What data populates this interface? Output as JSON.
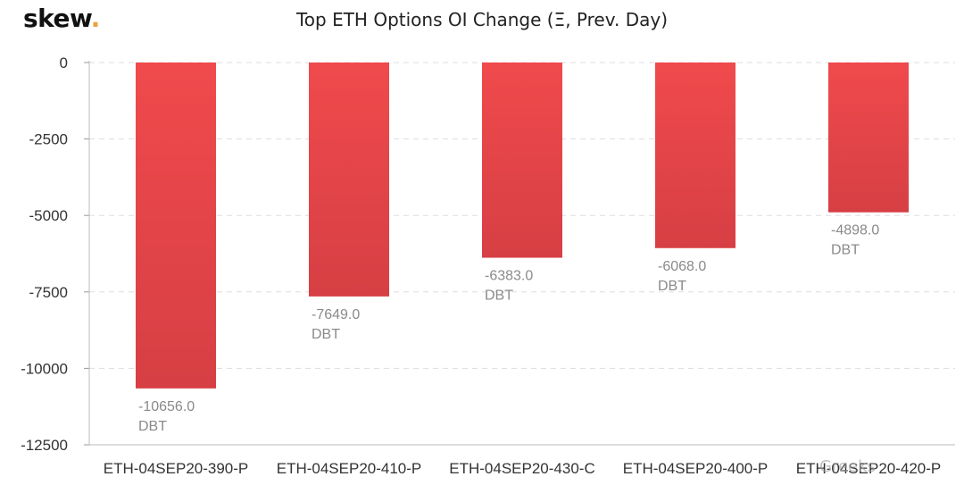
{
  "logo": {
    "text": "skew",
    "dot": ".",
    "dot_color": "#e8a33a"
  },
  "watermark": {
    "text": "Greeks"
  },
  "colors": {
    "bar_top": "#f04a4c",
    "bar_bottom": "#d63f44",
    "label": "#8a8a8a",
    "axis_text": "#333333",
    "grid": "#dddddd"
  },
  "chart_data": {
    "type": "bar",
    "title": "Top ETH Options OI Change (Ξ, Prev. Day)",
    "xlabel": "",
    "ylabel": "",
    "categories": [
      "ETH-04SEP20-390-P",
      "ETH-04SEP20-410-P",
      "ETH-04SEP20-430-C",
      "ETH-04SEP20-400-P",
      "ETH-04SEP20-420-P"
    ],
    "values": [
      -10656.0,
      -7649.0,
      -6383.0,
      -6068.0,
      -4898.0
    ],
    "value_labels": [
      "-10656.0",
      "-7649.0",
      "-6383.0",
      "-6068.0",
      "-4898.0"
    ],
    "label_unit": "DBT",
    "ylim": [
      -12500,
      0
    ],
    "yticks": [
      0,
      -2500,
      -5000,
      -7500,
      -10000,
      -12500
    ],
    "ytick_labels": [
      "0",
      "-2500",
      "-5000",
      "-7500",
      "-10000",
      "-12500"
    ],
    "grid": true,
    "legend": "none"
  }
}
